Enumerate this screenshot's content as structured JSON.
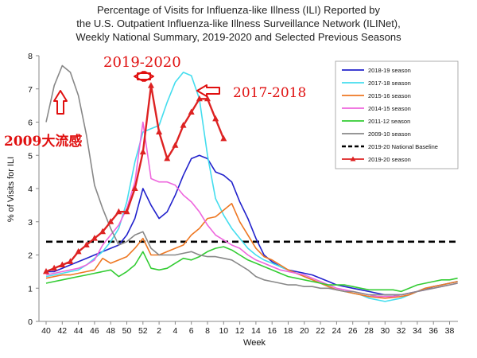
{
  "chart_data": {
    "type": "line",
    "title_lines": [
      "Percentage of Visits for Influenza-like Illness (ILI) Reported by",
      "the U.S. Outpatient Influenza-like Illness Surveillance Network (ILINet),",
      "Weekly National Summary, 2019-2020 and Selected Previous Seasons"
    ],
    "xlabel": "Week",
    "ylabel": "% of Visits for ILI",
    "ylim": [
      0,
      8
    ],
    "yticks": [
      0,
      1,
      2,
      3,
      4,
      5,
      6,
      7,
      8
    ],
    "xtick_labels": [
      "40",
      "42",
      "44",
      "46",
      "48",
      "50",
      "52",
      "2",
      "4",
      "6",
      "8",
      "10",
      "12",
      "14",
      "16",
      "18",
      "20",
      "22",
      "24",
      "26",
      "28",
      "30",
      "32",
      "34",
      "36",
      "38"
    ],
    "weeks": [
      "40",
      "41",
      "42",
      "43",
      "44",
      "45",
      "46",
      "47",
      "48",
      "49",
      "50",
      "51",
      "52",
      "1",
      "2",
      "3",
      "4",
      "5",
      "6",
      "7",
      "8",
      "9",
      "10",
      "11",
      "12",
      "13",
      "14",
      "15",
      "16",
      "17",
      "18",
      "19",
      "20",
      "21",
      "22",
      "23",
      "24",
      "25",
      "26",
      "27",
      "28",
      "29",
      "30",
      "31",
      "32",
      "33",
      "34",
      "35",
      "36",
      "37",
      "38",
      "39"
    ],
    "grid": false,
    "legend_position": "right",
    "national_baseline": 2.4,
    "series": [
      {
        "name": "2018-19 season",
        "color": "#2222cc",
        "style": "solid",
        "values": [
          1.5,
          1.5,
          1.6,
          1.7,
          1.8,
          1.9,
          2.0,
          2.1,
          2.2,
          2.3,
          2.6,
          3.1,
          4.0,
          3.5,
          3.1,
          3.3,
          3.8,
          4.4,
          4.9,
          5.0,
          4.9,
          4.5,
          4.4,
          4.2,
          3.6,
          3.1,
          2.5,
          2.0,
          1.8,
          1.65,
          1.55,
          1.5,
          1.45,
          1.4,
          1.3,
          1.2,
          1.1,
          1.05,
          1.0,
          0.95,
          0.9,
          0.85,
          0.8,
          0.8,
          0.8,
          0.85,
          0.9,
          0.95,
          1.05,
          1.1,
          1.15,
          1.2
        ]
      },
      {
        "name": "2017-18 season",
        "color": "#44ddee",
        "style": "solid",
        "values": [
          1.35,
          1.4,
          1.45,
          1.5,
          1.55,
          1.7,
          1.9,
          2.1,
          2.4,
          2.8,
          3.6,
          4.8,
          5.7,
          5.8,
          5.9,
          6.6,
          7.2,
          7.5,
          7.4,
          6.7,
          5.0,
          3.7,
          3.2,
          2.8,
          2.5,
          2.2,
          2.0,
          1.85,
          1.75,
          1.65,
          1.55,
          1.45,
          1.35,
          1.25,
          1.15,
          1.05,
          0.95,
          0.9,
          0.85,
          0.8,
          0.7,
          0.65,
          0.6,
          0.65,
          0.7,
          0.8,
          0.9,
          1.0,
          1.05,
          1.1,
          1.15,
          1.2
        ]
      },
      {
        "name": "2015-16 season",
        "color": "#ee7722",
        "style": "solid",
        "values": [
          1.3,
          1.35,
          1.4,
          1.4,
          1.45,
          1.5,
          1.55,
          1.9,
          1.75,
          1.85,
          1.95,
          2.2,
          2.5,
          2.0,
          2.0,
          2.1,
          2.2,
          2.3,
          2.6,
          2.8,
          3.1,
          3.15,
          3.35,
          3.55,
          3.0,
          2.6,
          2.2,
          1.95,
          1.85,
          1.7,
          1.55,
          1.45,
          1.35,
          1.25,
          1.15,
          1.05,
          0.95,
          0.9,
          0.85,
          0.8,
          0.75,
          0.72,
          0.7,
          0.72,
          0.75,
          0.8,
          0.9,
          1.0,
          1.05,
          1.1,
          1.15,
          1.2
        ]
      },
      {
        "name": "2014-15 season",
        "color": "#ee66dd",
        "style": "solid",
        "values": [
          1.4,
          1.45,
          1.5,
          1.55,
          1.6,
          1.7,
          1.85,
          2.3,
          2.6,
          2.9,
          3.4,
          4.2,
          6.0,
          4.3,
          4.2,
          4.2,
          4.1,
          3.8,
          3.6,
          3.3,
          2.9,
          2.6,
          2.45,
          2.3,
          2.2,
          2.0,
          1.85,
          1.75,
          1.65,
          1.55,
          1.5,
          1.45,
          1.4,
          1.3,
          1.2,
          1.1,
          1.0,
          0.95,
          0.9,
          0.85,
          0.8,
          0.75,
          0.75,
          0.75,
          0.8,
          0.85,
          0.9,
          0.95,
          1.0,
          1.05,
          1.1,
          1.15
        ]
      },
      {
        "name": "2011-12 season",
        "color": "#33cc33",
        "style": "solid",
        "values": [
          1.15,
          1.2,
          1.25,
          1.3,
          1.35,
          1.4,
          1.45,
          1.5,
          1.55,
          1.35,
          1.5,
          1.7,
          2.1,
          1.6,
          1.55,
          1.6,
          1.75,
          1.9,
          1.85,
          1.95,
          2.1,
          2.2,
          2.25,
          2.15,
          2.0,
          1.85,
          1.75,
          1.65,
          1.55,
          1.45,
          1.35,
          1.3,
          1.25,
          1.2,
          1.15,
          1.1,
          1.1,
          1.1,
          1.05,
          1.0,
          0.95,
          0.95,
          0.95,
          0.95,
          0.9,
          1.0,
          1.1,
          1.15,
          1.2,
          1.25,
          1.25,
          1.3
        ]
      },
      {
        "name": "2009-10 season",
        "color": "#888888",
        "style": "solid",
        "values": [
          6.0,
          7.1,
          7.7,
          7.5,
          6.8,
          5.6,
          4.1,
          3.4,
          2.8,
          2.3,
          2.4,
          2.6,
          2.7,
          2.2,
          2.0,
          2.0,
          2.0,
          2.05,
          2.1,
          2.0,
          1.95,
          1.95,
          1.9,
          1.85,
          1.7,
          1.55,
          1.35,
          1.25,
          1.2,
          1.15,
          1.1,
          1.1,
          1.05,
          1.05,
          1.0,
          1.0,
          0.95,
          0.9,
          0.9,
          0.85,
          0.8,
          0.8,
          0.8,
          0.8,
          0.8,
          0.85,
          0.9,
          0.95,
          1.0,
          1.05,
          1.1,
          1.15
        ]
      },
      {
        "name": "2019-20 National Baseline",
        "color": "#000000",
        "style": "dashed",
        "value": 2.4
      },
      {
        "name": "2019-20 season",
        "color": "#dd2222",
        "style": "solid-markers",
        "values": [
          1.5,
          1.6,
          1.7,
          1.8,
          2.1,
          2.3,
          2.5,
          2.7,
          3.0,
          3.3,
          3.3,
          4.0,
          5.1,
          7.1,
          5.7,
          4.9,
          5.3,
          5.9,
          6.3,
          6.7,
          6.7,
          6.1,
          5.5
        ]
      }
    ],
    "annotations": [
      {
        "text": "2019-2020",
        "color": "#e01010"
      },
      {
        "text": "2017-2018",
        "color": "#e01010"
      },
      {
        "text": "2009大流感",
        "color": "#e01010"
      }
    ]
  }
}
